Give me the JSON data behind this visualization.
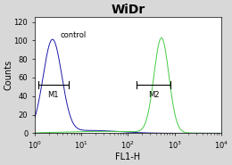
{
  "title": "WiDr",
  "xlabel": "FL1-H",
  "ylabel": "Counts",
  "title_fontsize": 10,
  "label_fontsize": 7,
  "tick_fontsize": 6,
  "background_color": "#d8d8d8",
  "plot_bg_color": "#ffffff",
  "control_label": "control",
  "m1_label": "M1",
  "m2_label": "M2",
  "xlim_log": [
    1,
    10000
  ],
  "ylim": [
    0,
    125
  ],
  "yticks": [
    0,
    20,
    40,
    60,
    80,
    100,
    120
  ],
  "control_color": "#1a1aaa",
  "sample_color": "#44cc44",
  "control_peak_log": 0.38,
  "sample_peak_log": 2.72,
  "control_sigma_log": 0.2,
  "sample_sigma_log": 0.16,
  "control_peak_height": 100,
  "sample_peak_height": 102,
  "control_tail_height": 3,
  "sample_tail_height": 2,
  "m1_x1_log": 0.08,
  "m1_x2_log": 0.72,
  "m1_y": 52,
  "m2_x1_log": 2.18,
  "m2_x2_log": 2.92,
  "m2_y": 52
}
